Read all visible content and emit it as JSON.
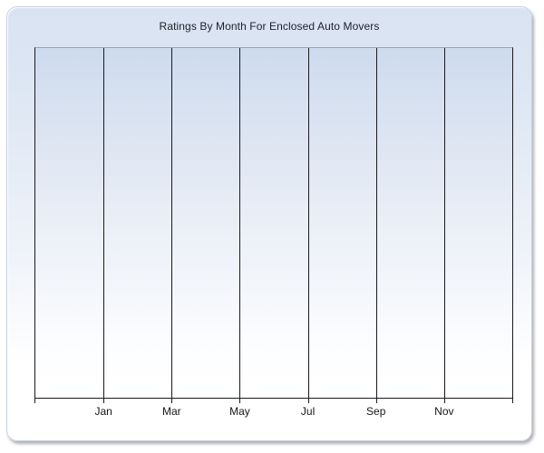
{
  "chart_data": {
    "type": "line",
    "title": "Ratings By Month For Enclosed Auto Movers",
    "categories": [
      "Jan",
      "Mar",
      "May",
      "Jul",
      "Sep",
      "Nov"
    ],
    "series": [],
    "xlabel": "",
    "ylabel": "",
    "y_tick_labels": [],
    "grid": "vertical-only",
    "vertical_gridline_count": 8,
    "legend": "none",
    "plot_empty": true
  },
  "colors": {
    "page_background": "#ffffff",
    "panel_gradient_top": "#d9e3f2",
    "panel_gradient_bottom": "#ffffff",
    "plot_gradient_top": "#cedbee",
    "plot_gradient_bottom": "#ffffff",
    "gridline": "#1a1a1f",
    "plot_top_border": "#9aa4b6",
    "title_text": "#1f1f28",
    "axis_label_text": "#16161a"
  }
}
